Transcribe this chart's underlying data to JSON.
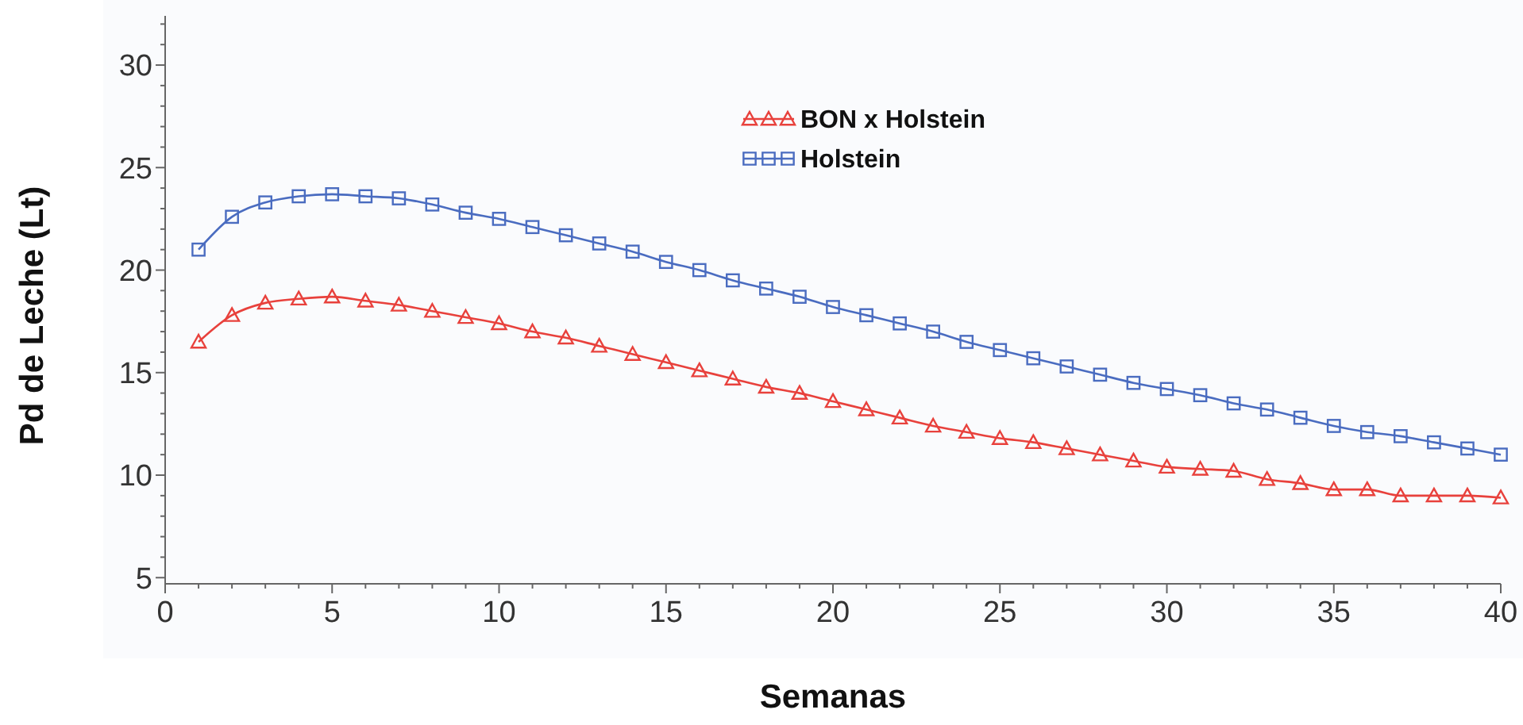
{
  "chart_data": {
    "type": "line",
    "xlabel": "Semanas",
    "ylabel": "Pd de Leche (Lt)",
    "x": [
      1,
      2,
      3,
      4,
      5,
      6,
      7,
      8,
      9,
      10,
      11,
      12,
      13,
      14,
      15,
      16,
      17,
      18,
      19,
      20,
      21,
      22,
      23,
      24,
      25,
      26,
      27,
      28,
      29,
      30,
      31,
      32,
      33,
      34,
      35,
      36,
      37,
      38,
      39,
      40
    ],
    "series": [
      {
        "name": "BON x Holstein",
        "color": "#e8413c",
        "marker": "triangle",
        "values": [
          16.5,
          17.8,
          18.4,
          18.6,
          18.7,
          18.5,
          18.3,
          18.0,
          17.7,
          17.4,
          17.0,
          16.7,
          16.3,
          15.9,
          15.5,
          15.1,
          14.7,
          14.3,
          14.0,
          13.6,
          13.2,
          12.8,
          12.4,
          12.1,
          11.8,
          11.6,
          11.3,
          11.0,
          10.7,
          10.4,
          10.3,
          10.2,
          9.8,
          9.6,
          9.3,
          9.3,
          9.0,
          9.0,
          9.0,
          8.9
        ]
      },
      {
        "name": "Holstein",
        "color": "#4a6cc0",
        "marker": "square",
        "values": [
          21.0,
          22.6,
          23.3,
          23.6,
          23.7,
          23.6,
          23.5,
          23.2,
          22.8,
          22.5,
          22.1,
          21.7,
          21.3,
          20.9,
          20.4,
          20.0,
          19.5,
          19.1,
          18.7,
          18.2,
          17.8,
          17.4,
          17.0,
          16.5,
          16.1,
          15.7,
          15.3,
          14.9,
          14.5,
          14.2,
          13.9,
          13.5,
          13.2,
          12.8,
          12.4,
          12.1,
          11.9,
          11.6,
          11.3,
          11.0
        ]
      }
    ],
    "xlim": [
      0,
      40
    ],
    "xticks": [
      0,
      {
        "value": 1,
        "label": null
      },
      {
        "value": 2,
        "label": null
      },
      {
        "value": 3,
        "label": null
      },
      {
        "value": 4,
        "label": null
      },
      5,
      {
        "value": 6,
        "label": null
      },
      {
        "value": 7,
        "label": null
      },
      {
        "value": 8,
        "label": null
      },
      {
        "value": 9,
        "label": null
      },
      10,
      {
        "value": 11,
        "label": null
      },
      {
        "value": 12,
        "label": null
      },
      {
        "value": 13,
        "label": null
      },
      {
        "value": 14,
        "label": null
      },
      15,
      {
        "value": 16,
        "label": null
      },
      {
        "value": 17,
        "label": null
      },
      {
        "value": 18,
        "label": null
      },
      {
        "value": 19,
        "label": null
      },
      20,
      {
        "value": 21,
        "label": null
      },
      {
        "value": 22,
        "label": null
      },
      {
        "value": 23,
        "label": null
      },
      {
        "value": 24,
        "label": null
      },
      25,
      {
        "value": 26,
        "label": null
      },
      {
        "value": 27,
        "label": null
      },
      {
        "value": 28,
        "label": null
      },
      {
        "value": 29,
        "label": null
      },
      30,
      {
        "value": 31,
        "label": null
      },
      {
        "value": 32,
        "label": null
      },
      {
        "value": 33,
        "label": null
      },
      {
        "value": 34,
        "label": null
      },
      35,
      {
        "value": 36,
        "label": null
      },
      {
        "value": 37,
        "label": null
      },
      {
        "value": 38,
        "label": null
      },
      {
        "value": 39,
        "label": null
      },
      40
    ],
    "ylim": [
      4.7,
      32.4
    ],
    "yticks": [
      5,
      {
        "value": 6,
        "label": null
      },
      {
        "value": 7,
        "label": null
      },
      {
        "value": 8,
        "label": null
      },
      {
        "value": 9,
        "label": null
      },
      10,
      {
        "value": 11,
        "label": null
      },
      {
        "value": 12,
        "label": null
      },
      {
        "value": 13,
        "label": null
      },
      {
        "value": 14,
        "label": null
      },
      15,
      {
        "value": 16,
        "label": null
      },
      {
        "value": 17,
        "label": null
      },
      {
        "value": 18,
        "label": null
      },
      {
        "value": 19,
        "label": null
      },
      20,
      {
        "value": 21,
        "label": null
      },
      {
        "value": 22,
        "label": null
      },
      {
        "value": 23,
        "label": null
      },
      {
        "value": 24,
        "label": null
      },
      25,
      {
        "value": 26,
        "label": null
      },
      {
        "value": 27,
        "label": null
      },
      {
        "value": 28,
        "label": null
      },
      {
        "value": 29,
        "label": null
      },
      30,
      {
        "value": 31,
        "label": null
      },
      {
        "value": 32,
        "label": null
      }
    ],
    "grid": false,
    "legend": "top",
    "line_style": "solid"
  }
}
